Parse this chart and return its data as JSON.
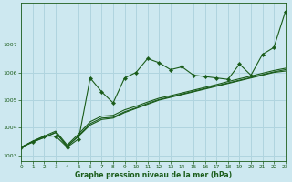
{
  "title": "Graphe pression niveau de la mer (hPa)",
  "bg_color": "#cde8f0",
  "grid_color": "#b0d4df",
  "line_color": "#1a5c1a",
  "xlim": [
    0,
    23
  ],
  "ylim": [
    1002.8,
    1008.5
  ],
  "yticks": [
    1003,
    1004,
    1005,
    1006,
    1007
  ],
  "xticks": [
    0,
    1,
    2,
    3,
    4,
    5,
    6,
    7,
    8,
    9,
    10,
    11,
    12,
    13,
    14,
    15,
    16,
    17,
    18,
    19,
    20,
    21,
    22,
    23
  ],
  "series_main": [
    1003.3,
    1003.5,
    1003.7,
    1003.7,
    1003.3,
    1003.6,
    1005.8,
    1005.3,
    1004.9,
    1005.8,
    1006.0,
    1006.5,
    1006.35,
    1006.1,
    1006.2,
    1005.9,
    1005.85,
    1005.8,
    1005.75,
    1006.3,
    1005.9,
    1006.65,
    1006.9,
    1008.2
  ],
  "series_line1": [
    1003.3,
    1003.48,
    1003.65,
    1003.83,
    1003.33,
    1003.7,
    1004.1,
    1004.3,
    1004.35,
    1004.55,
    1004.7,
    1004.85,
    1005.0,
    1005.1,
    1005.2,
    1005.3,
    1005.4,
    1005.5,
    1005.6,
    1005.7,
    1005.8,
    1005.9,
    1006.0,
    1006.05
  ],
  "series_line2": [
    1003.3,
    1003.5,
    1003.65,
    1003.83,
    1003.33,
    1003.72,
    1004.15,
    1004.35,
    1004.38,
    1004.58,
    1004.72,
    1004.88,
    1005.02,
    1005.12,
    1005.22,
    1005.32,
    1005.42,
    1005.52,
    1005.62,
    1005.72,
    1005.82,
    1005.92,
    1006.02,
    1006.1
  ],
  "series_line3": [
    1003.3,
    1003.52,
    1003.7,
    1003.88,
    1003.38,
    1003.78,
    1004.22,
    1004.42,
    1004.45,
    1004.65,
    1004.78,
    1004.93,
    1005.07,
    1005.16,
    1005.26,
    1005.36,
    1005.46,
    1005.56,
    1005.67,
    1005.77,
    1005.87,
    1005.97,
    1006.07,
    1006.15
  ]
}
